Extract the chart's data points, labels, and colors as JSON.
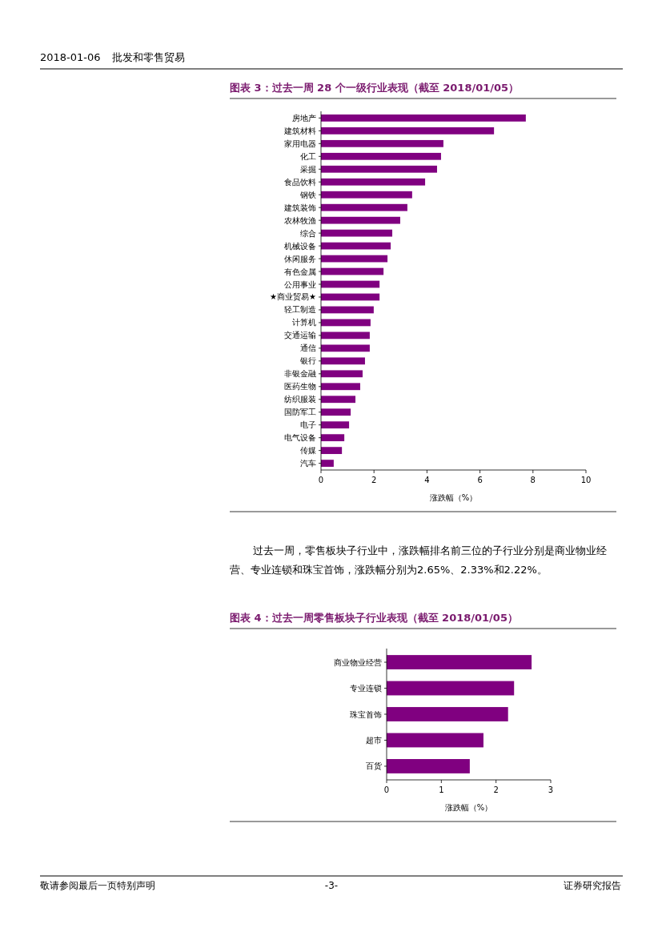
{
  "chart_data": [
    {
      "type": "bar",
      "orientation": "horizontal",
      "title": "图表 3：过去一周 28 个一级行业表现（截至 2018/01/05）",
      "xlabel": "涨跌幅（%）",
      "categories": [
        "房地产",
        "建筑材料",
        "家用电器",
        "化工",
        "采掘",
        "食品饮料",
        "钢铁",
        "建筑装饰",
        "农林牧渔",
        "综合",
        "机械设备",
        "休闲服务",
        "有色金属",
        "公用事业",
        "★商业贸易★",
        "轻工制造",
        "计算机",
        "交通运输",
        "通信",
        "银行",
        "非银金融",
        "医药生物",
        "纺织服装",
        "国防军工",
        "电子",
        "电气设备",
        "传媒",
        "汽车"
      ],
      "values": [
        7.73,
        6.53,
        4.62,
        4.53,
        4.38,
        3.93,
        3.44,
        3.26,
        2.99,
        2.69,
        2.63,
        2.51,
        2.36,
        2.21,
        2.21,
        1.99,
        1.87,
        1.84,
        1.84,
        1.66,
        1.57,
        1.48,
        1.3,
        1.12,
        1.06,
        0.88,
        0.79,
        0.48
      ],
      "color": "#800080",
      "xlim": [
        0,
        10
      ],
      "xticks": [
        0,
        2,
        4,
        6,
        8,
        10
      ],
      "grid": false,
      "annotations": [
        "2018-01-06",
        "批发和零售贸易"
      ]
    },
    {
      "type": "bar",
      "orientation": "horizontal",
      "title": "图表 4：过去一周零售板块子行业表现（截至 2018/01/05）",
      "xlabel": "涨跌幅（%）",
      "categories": [
        "商业物业经营",
        "专业连锁",
        "珠宝首饰",
        "超市",
        "百货"
      ],
      "values": [
        2.65,
        2.33,
        2.22,
        1.77,
        1.52
      ],
      "color": "#800080",
      "xlim": [
        0,
        3
      ],
      "xticks": [
        0,
        1,
        2,
        3
      ],
      "grid": false,
      "annotations": [
        "过去一周，零售板块子行业中，涨跌幅排名前三位的子行业分别是商业物业经营、专业连锁和珠宝首饰，涨跌幅分别为2.65%、2.33%和2.22%。",
        "敬请参阅最后一页特别声明",
        "-3-",
        "证券研究报告"
      ]
    }
  ]
}
